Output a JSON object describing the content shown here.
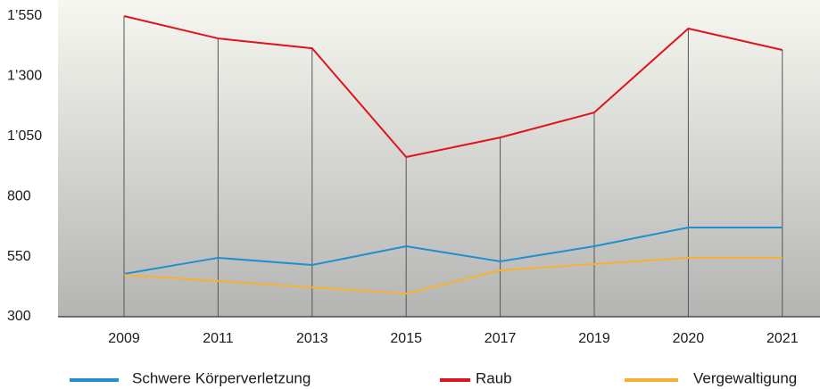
{
  "chart_data": {
    "type": "line",
    "categories": [
      "2009",
      "2011",
      "2013",
      "2015",
      "2017",
      "2019",
      "2020",
      "2021"
    ],
    "series": [
      {
        "name": "Schwere Körperverletzung",
        "color": "#1f8fd0",
        "values": [
          478,
          545,
          515,
          593,
          530,
          593,
          671,
          671
        ]
      },
      {
        "name": "Raub",
        "color": "#e0141e",
        "values": [
          1550,
          1457,
          1416,
          964,
          1045,
          1149,
          1498,
          1409
        ]
      },
      {
        "name": "Vergewaltigung",
        "color": "#f7b132",
        "values": [
          474,
          448,
          422,
          396,
          493,
          519,
          545,
          545
        ]
      }
    ],
    "ylim": [
      300,
      1550
    ],
    "yticks": [
      300,
      550,
      800,
      {
        "value": 1050,
        "label": "1’050"
      },
      {
        "value": 1300,
        "label": "1’300"
      },
      {
        "value": 1550,
        "label": "1’550"
      }
    ],
    "legend": "bottom"
  }
}
